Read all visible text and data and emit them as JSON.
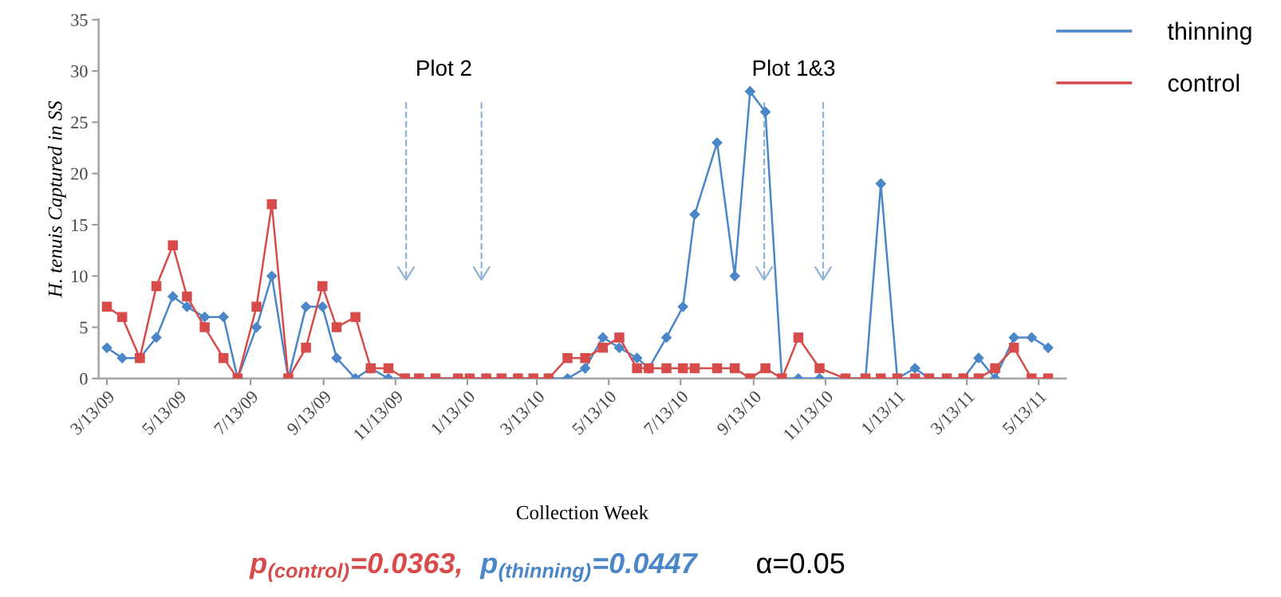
{
  "chart_data": {
    "type": "line",
    "xlabel": "Collection Week",
    "ylabel": "H. tenuis Captured in SS",
    "x": [
      "2009-03-13",
      "2009-03-26",
      "2009-04-10",
      "2009-04-24",
      "2009-05-08",
      "2009-05-20",
      "2009-06-04",
      "2009-06-20",
      "2009-07-02",
      "2009-07-18",
      "2009-07-31",
      "2009-08-14",
      "2009-08-29",
      "2009-09-12",
      "2009-09-24",
      "2009-10-10",
      "2009-10-23",
      "2009-11-07",
      "2009-11-21",
      "2009-12-03",
      "2009-12-17",
      "2010-01-05",
      "2010-01-15",
      "2010-01-29",
      "2010-02-11",
      "2010-02-25",
      "2010-03-10",
      "2010-03-23",
      "2010-04-08",
      "2010-04-23",
      "2010-05-08",
      "2010-05-22",
      "2010-06-06",
      "2010-06-16",
      "2010-07-01",
      "2010-07-15",
      "2010-07-25",
      "2010-08-13",
      "2010-08-28",
      "2010-09-10",
      "2010-09-23",
      "2010-10-07",
      "2010-10-21",
      "2010-11-08",
      "2010-11-30",
      "2010-12-17",
      "2010-12-30",
      "2011-01-13",
      "2011-01-28",
      "2011-02-09",
      "2011-02-24",
      "2011-03-10",
      "2011-03-23",
      "2011-04-06",
      "2011-04-22",
      "2011-05-07",
      "2011-05-21"
    ],
    "series": [
      {
        "name": "thinning",
        "color": "#4a86c8",
        "marker": "diamond",
        "values": [
          3,
          2,
          2,
          4,
          8,
          7,
          6,
          6,
          0,
          5,
          10,
          0,
          7,
          7,
          2,
          0,
          1,
          0,
          0,
          0,
          0,
          0,
          0,
          0,
          0,
          0,
          0,
          0,
          0,
          1,
          4,
          3,
          2,
          1,
          4,
          7,
          16,
          23,
          10,
          28,
          26,
          0,
          0,
          0,
          0,
          0,
          19,
          0,
          1,
          0,
          0,
          0,
          2,
          0,
          4,
          4,
          3
        ]
      },
      {
        "name": "control",
        "color": "#d84b4b",
        "marker": "square",
        "values": [
          7,
          6,
          2,
          9,
          13,
          8,
          5,
          2,
          0,
          7,
          17,
          0,
          3,
          9,
          5,
          6,
          1,
          1,
          0,
          0,
          0,
          0,
          0,
          0,
          0,
          0,
          0,
          0,
          2,
          2,
          3,
          4,
          1,
          1,
          1,
          1,
          1,
          1,
          1,
          0,
          1,
          0,
          4,
          1,
          0,
          0,
          0,
          0,
          0,
          0,
          0,
          0,
          0,
          1,
          3,
          0,
          0
        ]
      }
    ],
    "xlim": [
      "2009-03-06",
      "2011-06-05"
    ],
    "xticks": [
      {
        "value": "2009-03-13",
        "label": "3/13/09"
      },
      {
        "value": "2009-05-13",
        "label": "5/13/09"
      },
      {
        "value": "2009-07-13",
        "label": "7/13/09"
      },
      {
        "value": "2009-09-13",
        "label": "9/13/09"
      },
      {
        "value": "2009-11-13",
        "label": "11/13/09"
      },
      {
        "value": "2010-01-13",
        "label": "1/13/10"
      },
      {
        "value": "2010-03-13",
        "label": "3/13/10"
      },
      {
        "value": "2010-05-13",
        "label": "5/13/10"
      },
      {
        "value": "2010-07-13",
        "label": "7/13/10"
      },
      {
        "value": "2010-09-13",
        "label": "9/13/10"
      },
      {
        "value": "2010-11-13",
        "label": "11/13/10"
      },
      {
        "value": "2011-01-13",
        "label": "1/13/11"
      },
      {
        "value": "2011-03-13",
        "label": "3/13/11"
      },
      {
        "value": "2011-05-13",
        "label": "5/13/11"
      }
    ],
    "ylim": [
      0,
      35
    ],
    "yticks": [
      0,
      5,
      10,
      15,
      20,
      25,
      30,
      35
    ],
    "grid": false,
    "legend": "top right",
    "line_style": "solid",
    "ref_lines": [
      {
        "axis": "x",
        "value": "2009-11-22",
        "color": "#8fb4d6",
        "line_style": "dashed"
      },
      {
        "axis": "x",
        "value": "2010-01-25",
        "color": "#8fb4d6",
        "line_style": "dashed"
      },
      {
        "axis": "x",
        "value": "2010-09-22",
        "color": "#8fb4d6",
        "line_style": "dashed"
      },
      {
        "axis": "x",
        "value": "2010-11-11",
        "color": "#8fb4d6",
        "line_style": "dashed"
      }
    ],
    "annotations": [
      "Plot 2",
      "Plot 1&3",
      "p$_{(control)}$=0.0363,",
      "p$_{(thinning)}$=0.0447",
      "α=0.05"
    ]
  }
}
